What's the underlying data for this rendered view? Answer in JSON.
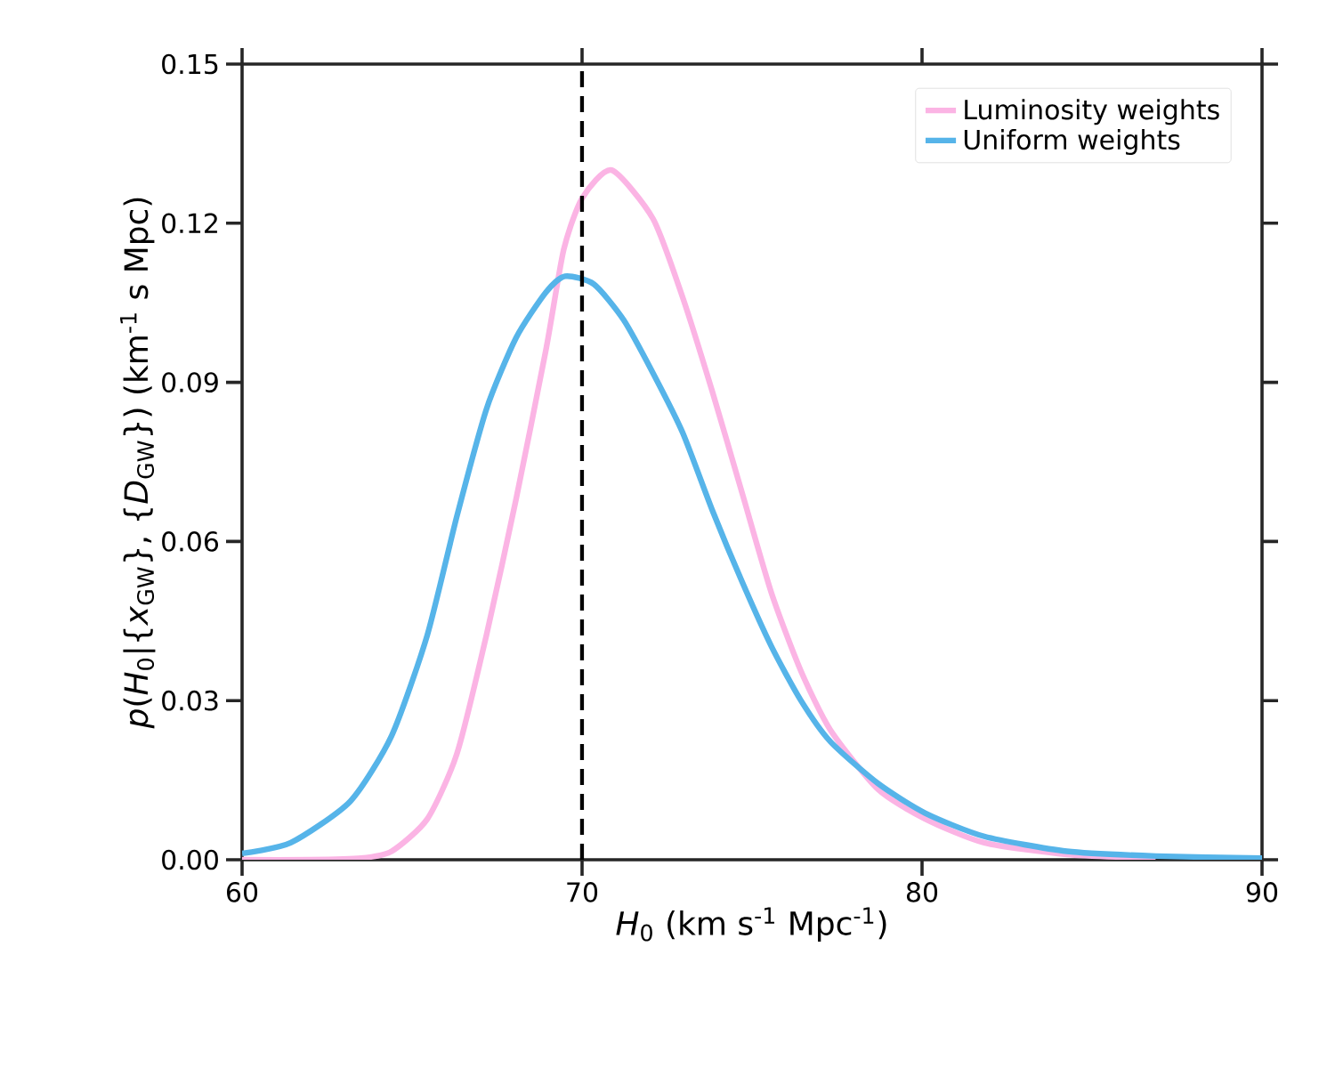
{
  "chart_data": {
    "type": "line",
    "xlabel": "*H*$_{0}$ (km s$^{-1}$ Mpc$^{-1}$)",
    "ylabel": "*p*(*H*$_{0}$|{*x*$_{GW}$}, {*D*$_{GW}$}) (km$^{-1}$ s Mpc)",
    "xlim": [
      60,
      90
    ],
    "ylim": [
      0,
      0.15
    ],
    "xticks": [
      60,
      70,
      80,
      90
    ],
    "yticks": [
      {
        "value": 0,
        "label": "0.00"
      },
      {
        "value": 0.03,
        "label": "0.03"
      },
      {
        "value": 0.06,
        "label": "0.06"
      },
      {
        "value": 0.09,
        "label": "0.09"
      },
      {
        "value": 0.12,
        "label": "0.12"
      },
      {
        "value": 0.15,
        "label": "0.15"
      }
    ],
    "grid": false,
    "legend": "top right",
    "marker": "none",
    "line_style": "solid",
    "ref_lines": [
      {
        "axis": "x",
        "value": 70,
        "color": "#000000",
        "line_style": "dashed"
      }
    ],
    "series": [
      {
        "name": "Luminosity weights",
        "color": "#fbb4e4",
        "x": [
          60,
          62,
          63.5,
          64.4,
          65.45,
          66.32,
          67.19,
          68.06,
          68.94,
          69.46,
          70,
          70.87,
          72.09,
          72.96,
          73.83,
          74.7,
          75.57,
          76.43,
          77.3,
          78.7,
          80.09,
          81.83,
          84.26,
          86.87
        ],
        "values": [
          0,
          0,
          0.0003,
          0.0016,
          0.0077,
          0.02,
          0.0424,
          0.068,
          0.0962,
          0.115,
          0.1247,
          0.13,
          0.1208,
          0.106,
          0.0883,
          0.0693,
          0.0503,
          0.0357,
          0.0245,
          0.0133,
          0.0077,
          0.0032,
          0.001,
          0.0003
        ]
      },
      {
        "name": "Uniform weights",
        "color": "#56b4e9",
        "x": [
          60,
          61.43,
          63.18,
          64.4,
          65.45,
          66.32,
          67.19,
          68.06,
          68.94,
          69.5,
          70.35,
          71.22,
          72.09,
          72.96,
          73.83,
          74.7,
          75.57,
          76.43,
          77.3,
          78.7,
          80.09,
          81.83,
          84.26,
          86.87,
          90
        ],
        "values": [
          0.0012,
          0.0032,
          0.011,
          0.0234,
          0.0424,
          0.0648,
          0.085,
          0.0984,
          0.107,
          0.11,
          0.1085,
          0.1018,
          0.0917,
          0.0805,
          0.0659,
          0.0525,
          0.0402,
          0.0301,
          0.0223,
          0.0144,
          0.0088,
          0.0044,
          0.0016,
          0.0007,
          0.0003
        ]
      }
    ]
  }
}
